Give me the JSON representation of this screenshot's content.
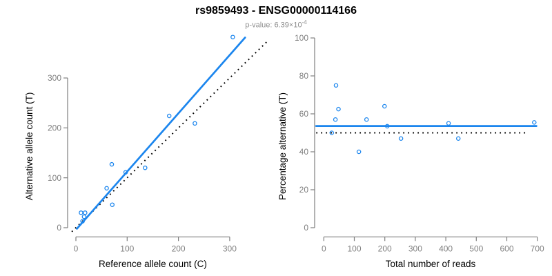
{
  "header": {
    "title": "rs9859493 - ENSG00000114166",
    "subtitle_prefix": "p-value: 6.39×10",
    "subtitle_exponent": "-4"
  },
  "colors": {
    "accent_blue": "#1c86ee",
    "identity_black": "#000000",
    "axis_gray": "#7f7f7f",
    "tick_label_gray": "#7f7f7f",
    "axis_title_black": "#000000",
    "subtitle_gray": "#8c8c8c"
  },
  "chart_data": [
    {
      "type": "scatter",
      "panel": "left",
      "xlabel": "Reference allele count (C)",
      "ylabel": "Alternative allele count (T)",
      "xticks": [
        0,
        100,
        200,
        300
      ],
      "yticks": [
        0,
        100,
        200,
        300
      ],
      "xlim": [
        0,
        330
      ],
      "ylim": [
        0,
        385
      ],
      "grid": false,
      "legend": "none",
      "points": [
        [
          10,
          30
        ],
        [
          18,
          30
        ],
        [
          16,
          22
        ],
        [
          13,
          13
        ],
        [
          71,
          46
        ],
        [
          60,
          79
        ],
        [
          70,
          127
        ],
        [
          97,
          111
        ],
        [
          135,
          120
        ],
        [
          182,
          224
        ],
        [
          232,
          209
        ],
        [
          306,
          382
        ]
      ],
      "fit_line": {
        "x1": 2,
        "y1": -2,
        "x2": 330,
        "y2": 381
      },
      "identity_line": {
        "x1": -8,
        "y1": -8,
        "x2": 374,
        "y2": 374
      }
    },
    {
      "type": "scatter",
      "panel": "right",
      "xlabel": "Total number of reads",
      "ylabel": "Percentage alternative (T)",
      "xticks": [
        0,
        100,
        200,
        300,
        400,
        500,
        600,
        700
      ],
      "yticks": [
        0,
        20,
        40,
        60,
        80,
        100
      ],
      "xlim": [
        0,
        700
      ],
      "ylim": [
        0,
        100
      ],
      "grid": false,
      "legend": "none",
      "points": [
        [
          40,
          75
        ],
        [
          48,
          62.5
        ],
        [
          38,
          57
        ],
        [
          26,
          50
        ],
        [
          115,
          40
        ],
        [
          140,
          57
        ],
        [
          199,
          64
        ],
        [
          208,
          53.5
        ],
        [
          253,
          47
        ],
        [
          409,
          55
        ],
        [
          441,
          47
        ],
        [
          690,
          55.5
        ]
      ],
      "mean_line": {
        "y": 53.6,
        "x1": -25,
        "x2": 697
      },
      "null_line": {
        "y": 50,
        "x1": -25,
        "x2": 671
      }
    }
  ]
}
